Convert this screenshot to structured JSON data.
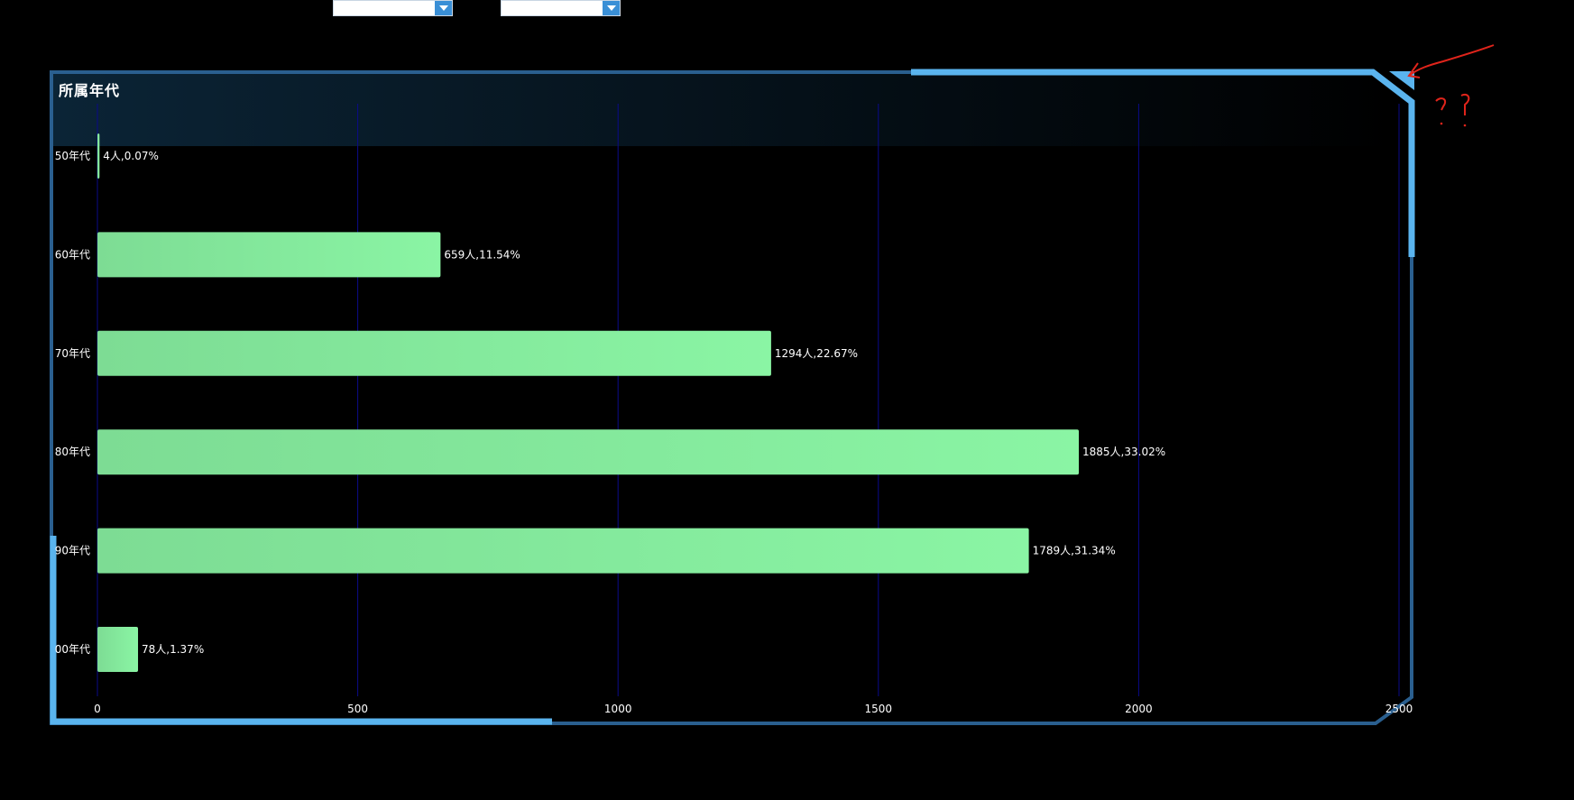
{
  "filters": [
    {
      "name": "filter-select-1",
      "value": ""
    },
    {
      "name": "filter-select-2",
      "value": ""
    }
  ],
  "panel": {
    "title": "所属年代",
    "frame_color": "#2a5f8f",
    "accent_color": "#5ab4ee"
  },
  "chart_data": {
    "type": "bar",
    "orientation": "horizontal",
    "title": "所属年代",
    "categories": [
      "50年代",
      "60年代",
      "70年代",
      "80年代",
      "90年代",
      "00年代"
    ],
    "values": [
      4,
      659,
      1294,
      1885,
      1789,
      78
    ],
    "data_labels": [
      "4人,0.07%",
      "659人,11.54%",
      "1294人,22.67%",
      "1885人,33.02%",
      "1789人,31.34%",
      "78人,1.37%"
    ],
    "xlim": [
      0,
      2500
    ],
    "x_ticks": [
      0,
      500,
      1000,
      1500,
      2000,
      2500
    ],
    "grid": true,
    "grid_color": "#0a0a8a",
    "bar_color_start": "#7ddc94",
    "bar_color_end": "#8af5a4",
    "xlabel": "",
    "ylabel": ""
  },
  "annotation": {
    "color": "#e0241b",
    "text": "??"
  }
}
